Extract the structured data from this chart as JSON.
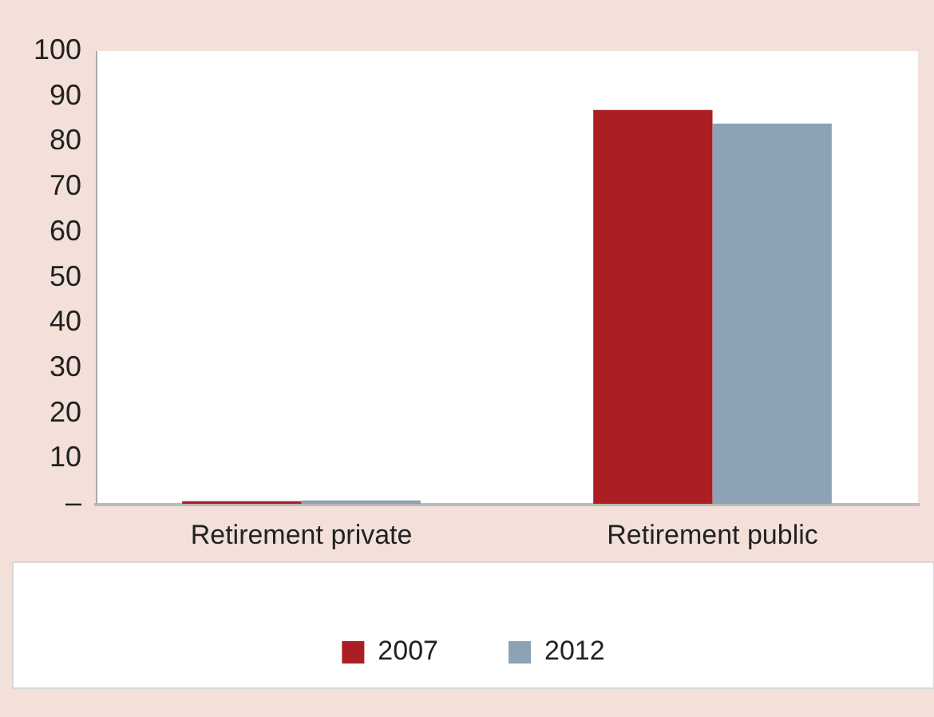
{
  "chart_data": {
    "type": "bar",
    "categories": [
      "Retirement private",
      "Retirement public"
    ],
    "series": [
      {
        "name": "2007",
        "color": "#ab1f24",
        "values": [
          0.6,
          87
        ]
      },
      {
        "name": "2012",
        "color": "#8ca3b5",
        "values": [
          0.8,
          84
        ]
      }
    ],
    "ylim": [
      0,
      100
    ],
    "yticks": [
      {
        "value": 0,
        "label": "–"
      },
      10,
      20,
      30,
      40,
      50,
      60,
      70,
      80,
      90,
      100
    ],
    "grid": false,
    "legend": "bottom"
  }
}
